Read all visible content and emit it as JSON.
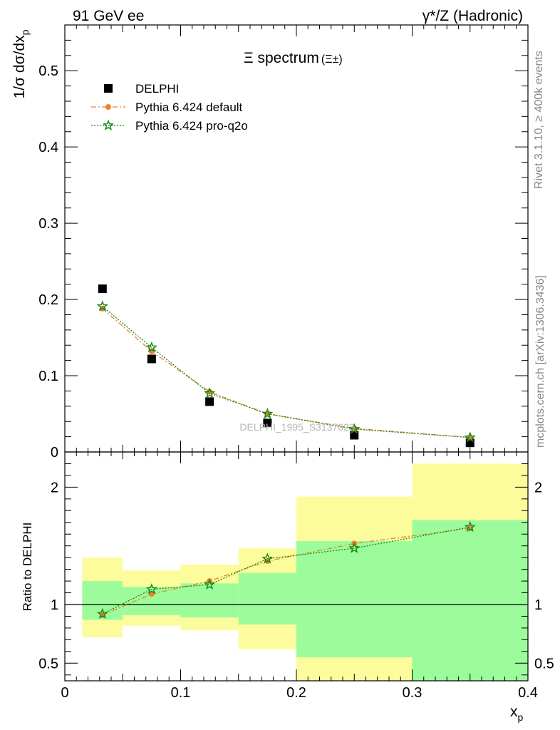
{
  "header": {
    "left_label": "91 GeV ee",
    "right_label": "γ*/Z (Hadronic)"
  },
  "side_labels": {
    "rivet": "Rivet 3.1.10, ≥ 400k events",
    "mcplots": "mcplots.cern.ch [arXiv:1306.3436]"
  },
  "watermark": "DELPHI_1995_S3137023",
  "chart_data": [
    {
      "type": "scatter",
      "title": "Ξ spectrum",
      "title_suffix": "(Ξ±)",
      "xlabel": "x",
      "xlabel_sub": "p",
      "ylabel": "1/σ dσ/dx",
      "ylabel_sub": "p",
      "xlim": [
        0,
        0.4
      ],
      "ylim": [
        0,
        0.56
      ],
      "yticks": [
        0,
        0.1,
        0.2,
        0.3,
        0.4,
        0.5
      ],
      "ytick_labels": [
        "0",
        "0.1",
        "0.2",
        "0.3",
        "0.4",
        "0.5"
      ],
      "legend_position": "top-left",
      "series": [
        {
          "name": "DELPHI",
          "color": "#000000",
          "marker": "square",
          "x": [
            0.0325,
            0.075,
            0.125,
            0.175,
            0.25,
            0.35
          ],
          "y": [
            0.214,
            0.122,
            0.066,
            0.038,
            0.022,
            0.012
          ]
        },
        {
          "name": "Pythia 6.424 default",
          "color": "#f08030",
          "marker": "circle",
          "line": "dashdot",
          "x": [
            0.0325,
            0.075,
            0.125,
            0.175,
            0.25,
            0.35
          ],
          "y": [
            0.188,
            0.132,
            0.079,
            0.05,
            0.031,
            0.019
          ]
        },
        {
          "name": "Pythia 6.424 pro-q2o",
          "color": "#128712",
          "marker": "star",
          "line": "dotted",
          "x": [
            0.0325,
            0.075,
            0.125,
            0.175,
            0.25,
            0.35
          ],
          "y": [
            0.191,
            0.137,
            0.077,
            0.05,
            0.03,
            0.019
          ]
        }
      ]
    },
    {
      "type": "scatter",
      "ylabel": "Ratio to DELPHI",
      "xlabel": "x",
      "xlabel_sub": "p",
      "xlim": [
        0,
        0.4
      ],
      "ylim": [
        0.35,
        2.3
      ],
      "yticks": [
        0.5,
        1,
        2
      ],
      "ytick_labels": [
        "0.5",
        "1",
        "2"
      ],
      "xticks": [
        0,
        0.1,
        0.2,
        0.3,
        0.4
      ],
      "xtick_labels": [
        "0",
        "0.1",
        "0.2",
        "0.3",
        "0.4"
      ],
      "reference_line": 1,
      "bands": [
        {
          "x0": 0.015,
          "x1": 0.05,
          "inner": [
            0.87,
            1.2
          ],
          "outer": [
            0.72,
            1.4
          ]
        },
        {
          "x0": 0.05,
          "x1": 0.1,
          "inner": [
            0.91,
            1.15
          ],
          "outer": [
            0.82,
            1.29
          ]
        },
        {
          "x0": 0.1,
          "x1": 0.15,
          "inner": [
            0.89,
            1.18
          ],
          "outer": [
            0.78,
            1.34
          ]
        },
        {
          "x0": 0.15,
          "x1": 0.2,
          "inner": [
            0.83,
            1.27
          ],
          "outer": [
            0.62,
            1.48
          ]
        },
        {
          "x0": 0.2,
          "x1": 0.3,
          "inner": [
            0.55,
            1.54
          ],
          "outer": [
            0.35,
            1.92
          ]
        },
        {
          "x0": 0.3,
          "x1": 0.4,
          "inner": [
            0.35,
            1.72
          ],
          "outer": [
            0.35,
            2.2
          ]
        }
      ],
      "band_colors": {
        "inner": "#9cfc9c",
        "outer": "#fcfc9c"
      },
      "series": [
        {
          "name": "Pythia 6.424 default",
          "color": "#f08030",
          "marker": "circle",
          "line": "dashdot",
          "x": [
            0.0325,
            0.075,
            0.125,
            0.175,
            0.25,
            0.35
          ],
          "y": [
            0.91,
            1.09,
            1.2,
            1.37,
            1.52,
            1.65
          ]
        },
        {
          "name": "Pythia 6.424 pro-q2o",
          "color": "#128712",
          "marker": "star",
          "line": "dotted",
          "x": [
            0.0325,
            0.075,
            0.125,
            0.175,
            0.25,
            0.35
          ],
          "y": [
            0.92,
            1.13,
            1.17,
            1.39,
            1.48,
            1.66
          ]
        }
      ]
    }
  ]
}
